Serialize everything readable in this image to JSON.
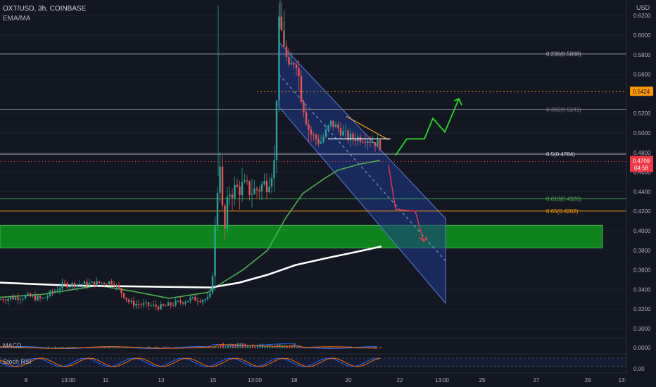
{
  "header": {
    "symbol_line": "OXT/USD, 3h, COINBASE",
    "indicator_line": "EMA/MA",
    "currency": "USD"
  },
  "price_axis": {
    "ticks": [
      "0.6200",
      "0.6000",
      "0.5800",
      "0.5600",
      "0.5400",
      "0.5200",
      "0.5000",
      "0.4800",
      "0.4600",
      "0.4400",
      "0.4200",
      "0.4000",
      "0.3800",
      "0.3600",
      "0.3400",
      "0.3200",
      "0.3000"
    ]
  },
  "time_axis": {
    "labels": [
      "8",
      "13:00",
      "11",
      "13",
      "15",
      "13:00",
      "18",
      "20",
      "22",
      "13:00",
      "25",
      "27",
      "29",
      "13:"
    ]
  },
  "price_tags": {
    "target_label": "0.5424",
    "current_label": "0.4709",
    "countdown": "04:58"
  },
  "fib_levels": [
    {
      "label": "0.236(0.5808)",
      "price": 0.5808,
      "color": "#b2b5be"
    },
    {
      "label": "0.382(0.5241)",
      "price": 0.5241,
      "color": "#787b86"
    },
    {
      "label": "0.5(0.4784)",
      "price": 0.4784,
      "color": "#d1d4dc"
    },
    {
      "label": "0.618(0.4326)",
      "price": 0.4326,
      "color": "#4caf50"
    },
    {
      "label": "0.65(0.4202)",
      "price": 0.4202,
      "color": "#ff9800"
    }
  ],
  "indicators": {
    "macd": {
      "label": "MACD",
      "value": "0.0000"
    },
    "stoch": {
      "label": "Stoch RSI",
      "value": "0.00"
    }
  },
  "chart_data": {
    "type": "candlestick",
    "symbol": "OXT/USD",
    "timeframe": "3h",
    "exchange": "COINBASE",
    "y_unit": "USD",
    "ylim": [
      0.29,
      0.63
    ],
    "key_levels": {
      "fib_0.236": 0.5808,
      "fib_0.382": 0.5241,
      "fib_0.5": 0.4784,
      "fib_0.618": 0.4326,
      "fib_0.65": 0.4202,
      "dotted_level": 0.5424,
      "current_price": 0.4709
    },
    "support_zone": [
      0.3825,
      0.4055
    ],
    "series": [
      {
        "color": "#4caf50",
        "points": [
          [
            0,
            0.332
          ],
          [
            60,
            0.335
          ],
          [
            140,
            0.344
          ],
          [
            190,
            0.338
          ],
          [
            240,
            0.331
          ],
          [
            295,
            0.337
          ],
          [
            305,
            0.342
          ],
          [
            345,
            0.36
          ],
          [
            380,
            0.38
          ],
          [
            405,
            0.412
          ],
          [
            430,
            0.438
          ],
          [
            460,
            0.453
          ],
          [
            480,
            0.462
          ],
          [
            510,
            0.468
          ],
          [
            540,
            0.472
          ]
        ]
      },
      {
        "color": "#ffffff",
        "points": [
          [
            0,
            0.347
          ],
          [
            100,
            0.344
          ],
          [
            200,
            0.343
          ],
          [
            300,
            0.342
          ],
          [
            340,
            0.347
          ],
          [
            380,
            0.355
          ],
          [
            420,
            0.365
          ],
          [
            470,
            0.373
          ],
          [
            510,
            0.379
          ],
          [
            542,
            0.384
          ]
        ]
      }
    ],
    "drawings": {
      "channel": {
        "upper": [
          [
            396,
            0.593
          ],
          [
            633,
            0.4125
          ]
        ],
        "lower": [
          [
            396,
            0.527
          ],
          [
            633,
            0.326
          ]
        ]
      },
      "green_projection": [
        0.4772,
        0.494,
        0.494,
        0.515,
        0.501,
        0.535
      ],
      "red_projection": [
        0.467,
        0.422,
        0.42,
        0.389
      ]
    }
  }
}
